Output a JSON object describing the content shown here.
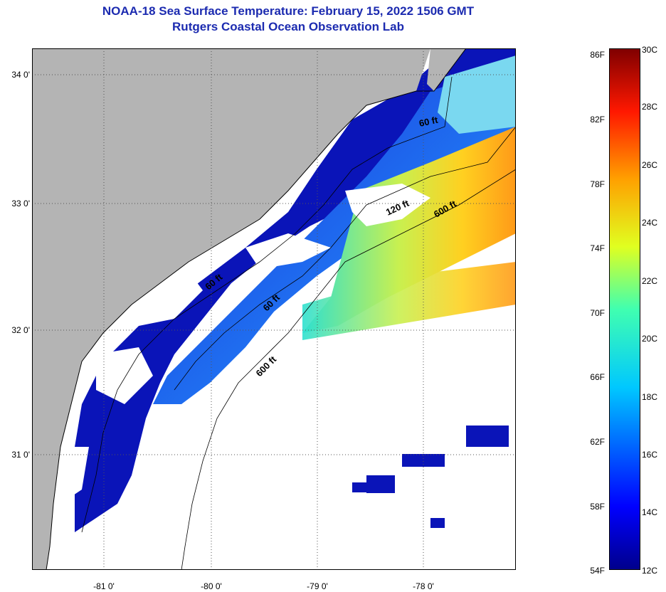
{
  "title": "NOAA-18 Sea Surface Temperature:  February 15, 2022 1506 GMT",
  "subtitle": "Rutgers Coastal Ocean Observation Lab",
  "map": {
    "lat_labels": [
      "34 0'",
      "33 0'",
      "32 0'",
      "31 0'"
    ],
    "lon_labels": [
      "-81 0'",
      "-80 0'",
      "-79 0'",
      "-78 0'"
    ],
    "contour_labels": [
      "60 ft",
      "120 ft",
      "600 ft",
      "60 ft",
      "60 ft",
      "600 ft"
    ],
    "colors": {
      "land": "#b4b4b4",
      "cloud": "#ffffff",
      "grid": "#555555"
    }
  },
  "colorbar": {
    "fahrenheit": [
      "86F",
      "82F",
      "78F",
      "74F",
      "70F",
      "66F",
      "62F",
      "58F",
      "54F"
    ],
    "celsius": [
      "30C",
      "28C",
      "26C",
      "24C",
      "22C",
      "20C",
      "18C",
      "16C",
      "14C",
      "12C"
    ]
  }
}
